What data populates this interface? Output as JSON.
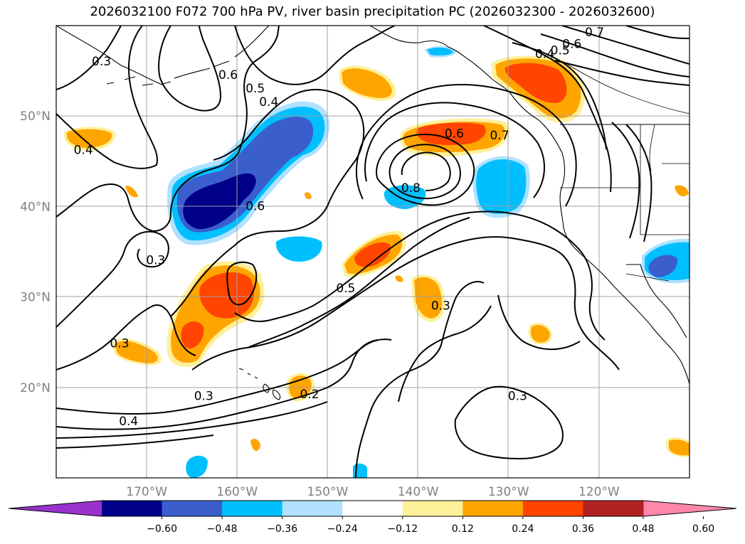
{
  "title": "2026032100 F072 700 hPa PV, river basin precipitation PC (2026032300 - 2026032600)",
  "map": {
    "lon_range": [
      -180,
      -110
    ],
    "lat_range": [
      10,
      60
    ],
    "lat_ticks": [
      {
        "label": "20°N",
        "lat": 20
      },
      {
        "label": "30°N",
        "lat": 30
      },
      {
        "label": "40°N",
        "lat": 40
      },
      {
        "label": "50°N",
        "lat": 50
      }
    ],
    "lon_ticks": [
      {
        "label": "170°W",
        "lon": -170
      },
      {
        "label": "160°W",
        "lon": -160
      },
      {
        "label": "150°W",
        "lon": -150
      },
      {
        "label": "140°W",
        "lon": -140
      },
      {
        "label": "130°W",
        "lon": -130
      },
      {
        "label": "120°W",
        "lon": -120
      }
    ],
    "gridlines": true,
    "contour_labels": [
      {
        "text": "0.3",
        "lon": -175,
        "lat": 56
      },
      {
        "text": "0.6",
        "lon": -161,
        "lat": 54.5
      },
      {
        "text": "0.5",
        "lon": -158,
        "lat": 53
      },
      {
        "text": "0.4",
        "lon": -156.5,
        "lat": 51.5
      },
      {
        "text": "0.4",
        "lon": -177,
        "lat": 46.2
      },
      {
        "text": "0.6",
        "lon": -158,
        "lat": 40
      },
      {
        "text": "0.3",
        "lon": -169,
        "lat": 34
      },
      {
        "text": "0.6",
        "lon": -136,
        "lat": 48
      },
      {
        "text": "0.7",
        "lon": -131,
        "lat": 47.8
      },
      {
        "text": "0.8",
        "lon": -140.8,
        "lat": 42
      },
      {
        "text": "0.5",
        "lon": -148,
        "lat": 30.9
      },
      {
        "text": "0.3",
        "lon": -137.5,
        "lat": 29
      },
      {
        "text": "0.3",
        "lon": -173,
        "lat": 24.8
      },
      {
        "text": "0.4",
        "lon": -172,
        "lat": 16.2
      },
      {
        "text": "0.3",
        "lon": -163.7,
        "lat": 19
      },
      {
        "text": "0.2",
        "lon": -152,
        "lat": 19.2
      },
      {
        "text": "0.3",
        "lon": -129,
        "lat": 19
      },
      {
        "text": "0.5",
        "lon": -124.3,
        "lat": 57.2
      },
      {
        "text": "0.4",
        "lon": -126,
        "lat": 56.8
      },
      {
        "text": "0.6",
        "lon": -123,
        "lat": 57.9
      },
      {
        "text": "0.7",
        "lon": -120.5,
        "lat": 59.2
      }
    ]
  },
  "colorbar": {
    "colors": [
      "#9932cc",
      "#00008b",
      "#3a5fcd",
      "#00bfff",
      "#b0e2ff",
      "#ffffff",
      "#fff09a",
      "#ffa500",
      "#ff4500",
      "#b22222",
      "#ff88aa"
    ],
    "tick_labels": [
      "−0.60",
      "−0.48",
      "−0.36",
      "−0.24",
      "−0.12",
      "0.12",
      "0.24",
      "0.36",
      "0.48",
      "0.60"
    ]
  },
  "precip_colors": {
    "neg4": "#00008b",
    "neg3": "#3a5fcd",
    "neg2": "#00bfff",
    "neg1": "#b0e2ff",
    "pos1": "#fff09a",
    "pos2": "#ffa500",
    "pos3": "#ff4500"
  }
}
